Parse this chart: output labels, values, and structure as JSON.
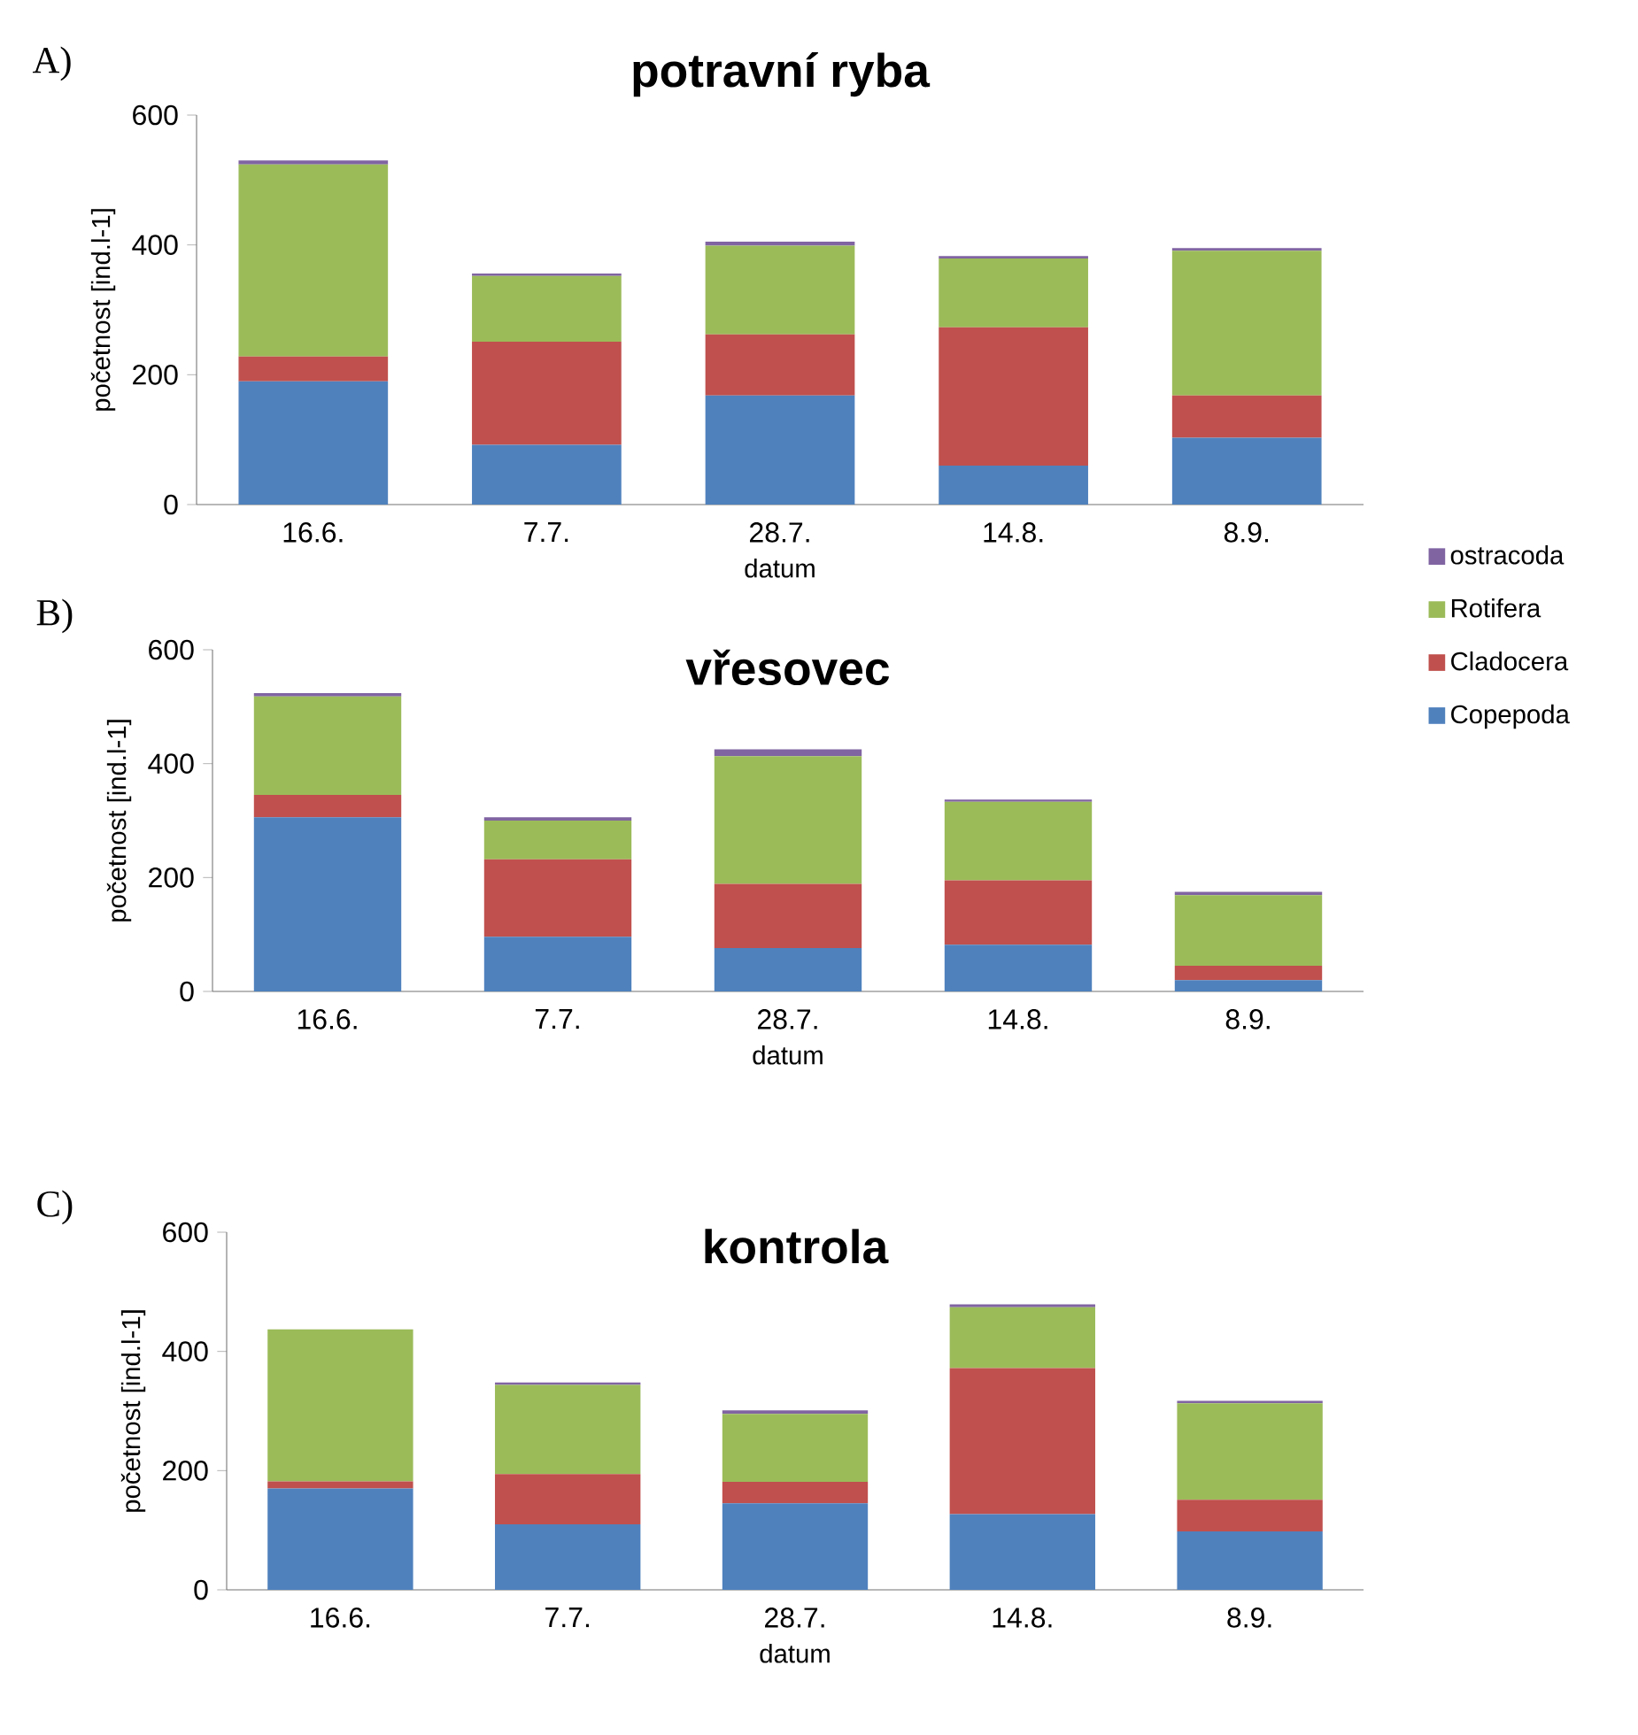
{
  "chart_data": [
    {
      "type": "bar",
      "stacked": true,
      "title": "potravní ryba",
      "xlabel": "datum",
      "ylabel": "početnost [ind.l-1]",
      "annotations": [
        "A)"
      ],
      "categories": [
        "16.6.",
        "7.7.",
        "28.7.",
        "14.8.",
        "8.9."
      ],
      "ylim": [
        0,
        600
      ],
      "yticks": [
        0,
        200,
        400,
        600
      ],
      "series": [
        {
          "color": "#4f81bd",
          "values": [
            190,
            92,
            168,
            60,
            103
          ]
        },
        {
          "color": "#c0504d",
          "values": [
            38,
            159,
            94,
            213,
            65
          ]
        },
        {
          "color": "#9bbb59",
          "values": [
            296,
            101,
            137,
            106,
            223
          ]
        },
        {
          "color": "#8064a2",
          "values": [
            6,
            4,
            6,
            4,
            4
          ]
        }
      ]
    },
    {
      "type": "bar",
      "stacked": true,
      "title": "vřesovec",
      "xlabel": "datum",
      "ylabel": "početnost [ind.l-1]",
      "annotations": [
        "B)"
      ],
      "legend": "right",
      "categories": [
        "16.6.",
        "7.7.",
        "28.7.",
        "14.8.",
        "8.9."
      ],
      "ylim": [
        0,
        600
      ],
      "yticks": [
        0,
        200,
        400,
        600
      ],
      "series": [
        {
          "name": "Copepoda",
          "color": "#4f81bd",
          "values": [
            306,
            96,
            76,
            82,
            20
          ]
        },
        {
          "name": "Cladocera",
          "color": "#c0504d",
          "values": [
            39,
            136,
            113,
            113,
            25
          ]
        },
        {
          "name": "Rotifera",
          "color": "#9bbb59",
          "values": [
            173,
            68,
            224,
            138,
            124
          ]
        },
        {
          "name": "ostracoda",
          "color": "#8064a2",
          "values": [
            6,
            6,
            12,
            4,
            6
          ]
        }
      ]
    },
    {
      "type": "bar",
      "stacked": true,
      "title": "kontrola",
      "xlabel": "datum",
      "ylabel": "početnost [ind.l-1]",
      "annotations": [
        "C)"
      ],
      "categories": [
        "16.6.",
        "7.7.",
        "28.7.",
        "14.8.",
        "8.9."
      ],
      "ylim": [
        0,
        600
      ],
      "yticks": [
        0,
        200,
        400,
        600
      ],
      "series": [
        {
          "color": "#4f81bd",
          "values": [
            170,
            110,
            145,
            127,
            98
          ]
        },
        {
          "color": "#c0504d",
          "values": [
            12,
            84,
            36,
            245,
            53
          ]
        },
        {
          "color": "#9bbb59",
          "values": [
            255,
            150,
            114,
            102,
            162
          ]
        },
        {
          "color": "#8064a2",
          "values": [
            0,
            4,
            6,
            5,
            4
          ]
        }
      ]
    }
  ]
}
